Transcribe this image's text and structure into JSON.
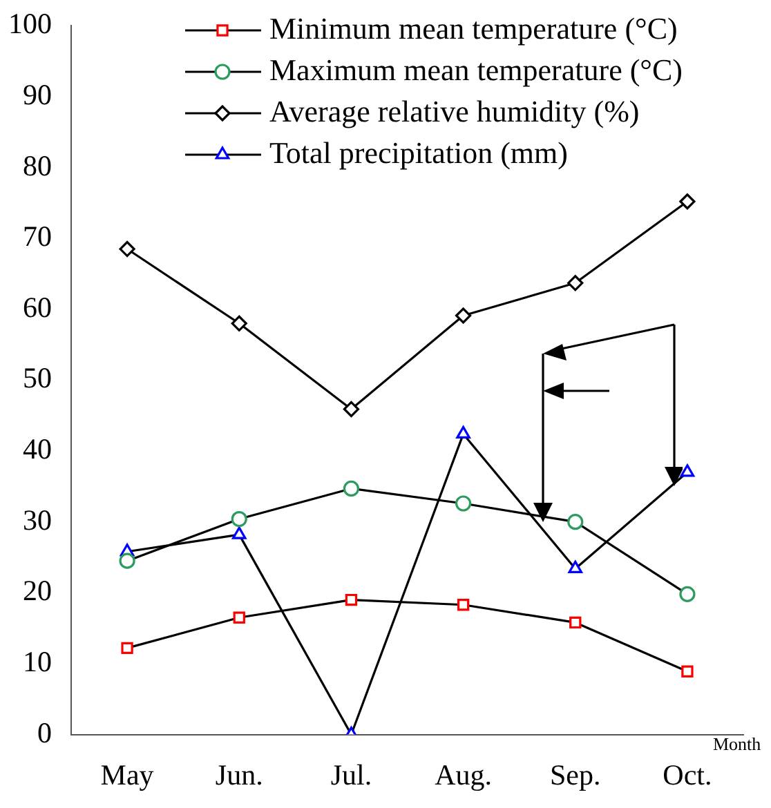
{
  "chart_data": {
    "type": "line",
    "xlabel": "Month",
    "categories": [
      "May",
      "Jun.",
      "Jul.",
      "Aug.",
      "Sep.",
      "Oct."
    ],
    "series": [
      {
        "name": "Minimum mean temperature (°C)",
        "color": "#ff0000",
        "marker": "square",
        "values": [
          12.2,
          16.5,
          19.0,
          18.3,
          15.8,
          8.9
        ]
      },
      {
        "name": "Maximum mean temperature (°C)",
        "color": "#2e9b5e",
        "marker": "circle",
        "values": [
          24.5,
          30.4,
          34.7,
          32.6,
          30.0,
          19.8
        ]
      },
      {
        "name": "Average relative humidity (%)",
        "color": "#000000",
        "marker": "diamond",
        "values": [
          68.5,
          58.0,
          45.9,
          59.1,
          63.7,
          75.2
        ]
      },
      {
        "name": "Total precipitation (mm)",
        "color": "#0000ff",
        "marker": "triangle",
        "values": [
          25.8,
          28.2,
          0,
          42.4,
          23.4,
          37.0
        ]
      }
    ],
    "ylim": [
      0,
      100
    ],
    "yticks": [
      0,
      10,
      20,
      30,
      40,
      50,
      60,
      70,
      80,
      90,
      100
    ],
    "grid": false,
    "legend": "top right",
    "line_style": "solid"
  }
}
